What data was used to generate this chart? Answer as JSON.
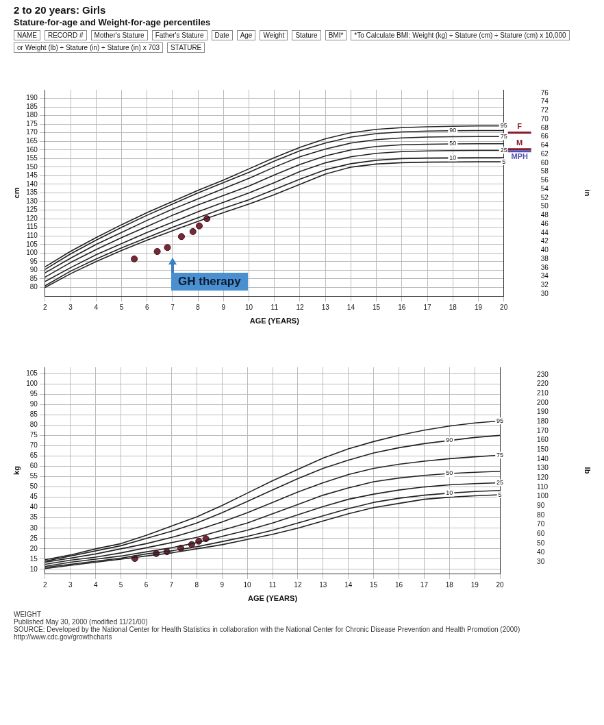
{
  "chart_data": [
    {
      "type": "line",
      "title": "2 to 20 years: Girls",
      "subtitle": "Stature-for-age and Weight-for-age percentiles",
      "xlabel": "AGE (YEARS)",
      "ylabel": "cm",
      "y2label": "in",
      "x": [
        2,
        3,
        4,
        5,
        6,
        7,
        8,
        9,
        10,
        11,
        12,
        13,
        14,
        15,
        16,
        17,
        18,
        19,
        20
      ],
      "series": [
        {
          "name": "95",
          "color": "#222222",
          "values": [
            92,
            101,
            109,
            116.5,
            123.5,
            130,
            136.5,
            142.5,
            149,
            155.5,
            161.5,
            166.5,
            170,
            172,
            173,
            173.5,
            173.8,
            174,
            174
          ]
        },
        {
          "name": "90",
          "color": "#222222",
          "values": [
            90.5,
            99.5,
            107.5,
            115,
            122,
            128.5,
            135,
            141,
            147,
            153.5,
            159.5,
            164,
            167.5,
            169.5,
            170.5,
            171,
            171.2,
            171.3,
            171.3
          ]
        },
        {
          "name": "75",
          "color": "#222222",
          "values": [
            88.5,
            97,
            105,
            112,
            119,
            125.5,
            131.5,
            137.5,
            143.5,
            150,
            156,
            160.5,
            164,
            166,
            167,
            167.5,
            167.7,
            167.8,
            167.8
          ]
        },
        {
          "name": "50",
          "color": "#222222",
          "values": [
            86,
            94.5,
            102,
            109,
            115.5,
            122,
            128,
            133.5,
            139,
            145.5,
            151.5,
            156.5,
            160,
            162,
            163,
            163.3,
            163.5,
            163.6,
            163.6
          ]
        },
        {
          "name": "25",
          "color": "#222222",
          "values": [
            83.5,
            91.5,
            99,
            105.5,
            112,
            118,
            124,
            129.5,
            135,
            141,
            147.5,
            152.5,
            156,
            158,
            159,
            159.4,
            159.6,
            159.7,
            159.7
          ]
        },
        {
          "name": "10",
          "color": "#222222",
          "values": [
            81,
            89.5,
            96.5,
            103,
            109,
            115,
            120.5,
            126,
            131,
            137,
            143,
            148.5,
            152,
            154,
            155,
            155.3,
            155.4,
            155.5,
            155.5
          ]
        },
        {
          "name": "5",
          "color": "#222222",
          "values": [
            80,
            88,
            95,
            101.5,
            107.5,
            113,
            118.5,
            123.5,
            128.5,
            134,
            140,
            146,
            150,
            151.8,
            152.6,
            152.9,
            153,
            153.1,
            153.1
          ]
        },
        {
          "type": "scatter",
          "marker": "circle",
          "color": "#7b2636",
          "x": [
            5.5,
            6.4,
            6.8,
            7.35,
            7.8,
            8.05,
            8.35
          ],
          "values": [
            96.6,
            100.9,
            103.2,
            109.6,
            112.5,
            115.8,
            120
          ]
        }
      ],
      "xlim": [
        2,
        20
      ],
      "xticks": [
        2,
        3,
        4,
        5,
        6,
        7,
        8,
        9,
        10,
        11,
        12,
        13,
        14,
        15,
        16,
        17,
        18,
        19,
        20
      ],
      "ylim": [
        75,
        195
      ],
      "yticks": [
        80,
        85,
        90,
        95,
        100,
        105,
        110,
        115,
        120,
        125,
        130,
        135,
        140,
        145,
        150,
        155,
        160,
        165,
        170,
        175,
        180,
        185,
        190
      ],
      "y2lim": [
        29.53,
        76.77
      ],
      "y2ticks": [
        30,
        32,
        34,
        36,
        38,
        40,
        42,
        44,
        46,
        48,
        50,
        52,
        54,
        56,
        58,
        60,
        62,
        64,
        66,
        68,
        70,
        72,
        74,
        76
      ],
      "grid": true,
      "legend": false,
      "marker": "none",
      "ref_lines": [
        {
          "axis": "y",
          "value": 170.1,
          "label": "F",
          "color": "#8b1a2a"
        },
        {
          "axis": "y",
          "value": 160.4,
          "label": "M",
          "color": "#8b1a2a"
        },
        {
          "axis": "y",
          "value": 159.2,
          "label": "MPH",
          "color": "#5050b0"
        }
      ],
      "annotations": [
        "NAME",
        "RECORD #",
        "Mother's Stature",
        "Father's Stature",
        "Date",
        "Age",
        "Weight",
        "Stature",
        "BMI*",
        "*To Calculate BMI: Weight (kg) ÷ Stature (cm) ÷ Stature (cm) x 10,000",
        "or Weight (lb) ÷ Stature (in) ÷ Stature (in) x 703",
        "STATURE",
        "GH therapy"
      ]
    },
    {
      "type": "line",
      "xlabel": "AGE (YEARS)",
      "ylabel": "kg",
      "y2label": "lb",
      "x": [
        2,
        3,
        4,
        5,
        6,
        7,
        8,
        9,
        10,
        11,
        12,
        13,
        14,
        15,
        16,
        17,
        18,
        19,
        20
      ],
      "series": [
        {
          "name": "95",
          "color": "#222222",
          "values": [
            14.7,
            17,
            20,
            22.5,
            26.5,
            31,
            35.5,
            41,
            47,
            53,
            58.5,
            64,
            68.5,
            72,
            75,
            77.5,
            79.5,
            81,
            82
          ]
        },
        {
          "name": "90",
          "color": "#222222",
          "values": [
            14,
            16.5,
            19,
            21.5,
            25,
            28.5,
            32.5,
            37.5,
            43,
            48.5,
            54,
            59,
            63,
            66.5,
            69,
            71,
            72.5,
            74,
            75
          ]
        },
        {
          "name": "75",
          "color": "#222222",
          "values": [
            13.5,
            15.5,
            17.5,
            20,
            22.5,
            25.5,
            29,
            33,
            37.5,
            42.5,
            47.5,
            52,
            56,
            59,
            61,
            62.5,
            63.7,
            64.6,
            65.4
          ]
        },
        {
          "name": "50",
          "color": "#222222",
          "values": [
            12.5,
            14.5,
            16,
            18,
            20.5,
            23,
            25.5,
            29,
            32.5,
            37,
            41.5,
            46,
            49.5,
            52.5,
            54.3,
            55.6,
            56.5,
            57.1,
            57.6
          ]
        },
        {
          "name": "25",
          "color": "#222222",
          "values": [
            11.5,
            13.5,
            15,
            16.5,
            18.5,
            20.5,
            23,
            26,
            29,
            32.5,
            36.5,
            40.5,
            44,
            46.5,
            48.5,
            50,
            51,
            51.6,
            52
          ]
        },
        {
          "name": "10",
          "color": "#222222",
          "values": [
            11,
            12.5,
            14,
            15.5,
            17.5,
            19,
            21,
            23.5,
            26,
            29,
            32.5,
            36,
            39.5,
            42.5,
            44.5,
            46,
            47,
            47.8,
            48.3
          ]
        },
        {
          "name": "5",
          "color": "#222222",
          "values": [
            10.4,
            12,
            13.5,
            15,
            16.5,
            18,
            20,
            22,
            24.5,
            27,
            30,
            33.5,
            37,
            40,
            42,
            44,
            45,
            45.7,
            46.2
          ]
        },
        {
          "type": "scatter",
          "marker": "circle",
          "color": "#7b2636",
          "x": [
            5.55,
            6.4,
            6.82,
            7.37,
            7.8,
            8.08,
            8.36
          ],
          "values": [
            15.3,
            17.7,
            18.6,
            20.3,
            22.1,
            23.7,
            24.9
          ]
        }
      ],
      "xlim": [
        2,
        20
      ],
      "xticks": [
        2,
        3,
        4,
        5,
        6,
        7,
        8,
        9,
        10,
        11,
        12,
        13,
        14,
        15,
        16,
        17,
        18,
        19,
        20
      ],
      "ylim": [
        8,
        108
      ],
      "yticks": [
        10,
        15,
        20,
        25,
        30,
        35,
        40,
        45,
        50,
        55,
        60,
        65,
        70,
        75,
        80,
        85,
        90,
        95,
        100,
        105
      ],
      "y2lim": [
        17.64,
        238.1
      ],
      "y2ticks": [
        30,
        40,
        50,
        60,
        70,
        80,
        90,
        100,
        110,
        120,
        130,
        140,
        150,
        160,
        170,
        180,
        190,
        200,
        210,
        220,
        230
      ],
      "grid": true,
      "legend": false,
      "marker": "none",
      "annotations": [
        "WEIGHT",
        "Published May 30, 2000 (modified 11/21/00)",
        "SOURCE: Developed by the National Center for Health Statistics in collaboration with the National Center for Chronic Disease Prevention and Health Promotion (2000)",
        "http://www.cdc.gov/growthcharts"
      ]
    }
  ]
}
